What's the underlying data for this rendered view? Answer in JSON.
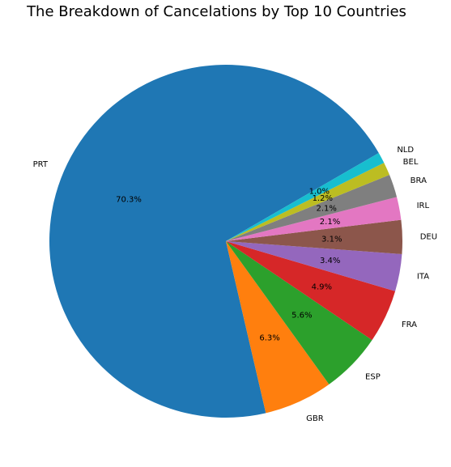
{
  "chart_data": {
    "type": "pie",
    "title": "The Breakdown of Cancelations by Top 10 Countries",
    "categories": [
      "PRT",
      "GBR",
      "ESP",
      "FRA",
      "ITA",
      "DEU",
      "IRL",
      "BRA",
      "BEL",
      "NLD"
    ],
    "values": [
      70.3,
      6.3,
      5.6,
      4.9,
      3.4,
      3.1,
      2.1,
      2.1,
      1.2,
      1.0
    ],
    "value_labels": [
      "70.3%",
      "6.3%",
      "5.6%",
      "4.9%",
      "3.4%",
      "3.1%",
      "2.1%",
      "2.1%",
      "1.2%",
      "1.0%"
    ],
    "colors": [
      "#1f77b4",
      "#ff7f0e",
      "#2ca02c",
      "#d62728",
      "#9467bd",
      "#8c564b",
      "#e377c2",
      "#7f7f7f",
      "#bcbd22",
      "#17becf"
    ],
    "start_angle_deg": 30,
    "direction": "counterclockwise"
  }
}
